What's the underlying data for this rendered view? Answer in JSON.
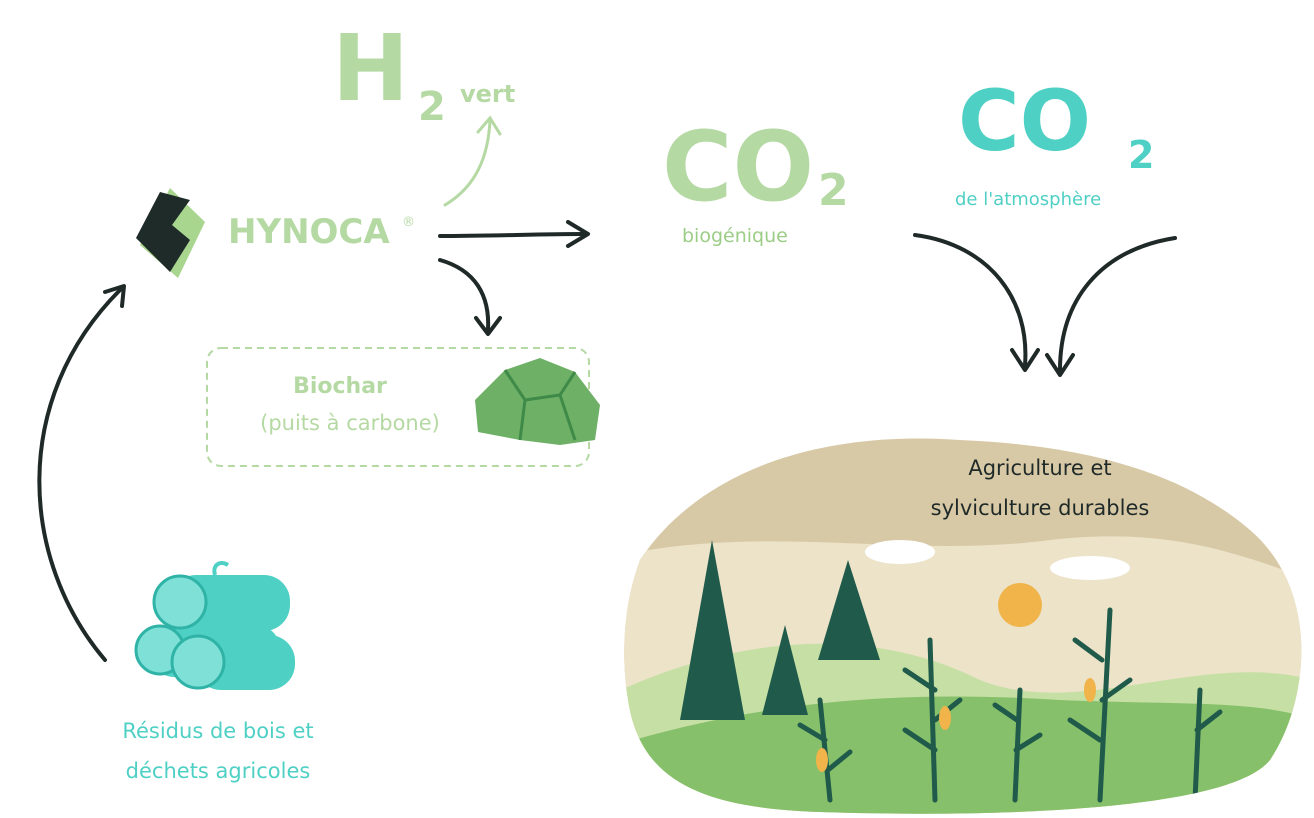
{
  "hydrogen": {
    "symbol": "H",
    "subscript": "2",
    "label": "vert"
  },
  "hynoca": {
    "name": "HYNOCA",
    "mark": "®"
  },
  "co2_biogenic": {
    "formula": "CO",
    "subscript": "2",
    "label": "biogénique"
  },
  "co2_atmosphere": {
    "formula": "CO",
    "subscript": "2",
    "label": "de l'atmosphère"
  },
  "biochar": {
    "title": "Biochar",
    "subtitle": "(puits à carbone)"
  },
  "landscape": {
    "lines": [
      "Agriculture et",
      "sylviculture durables"
    ]
  },
  "residues": {
    "lines": [
      "Résidus de bois et",
      "déchets agricoles"
    ]
  }
}
